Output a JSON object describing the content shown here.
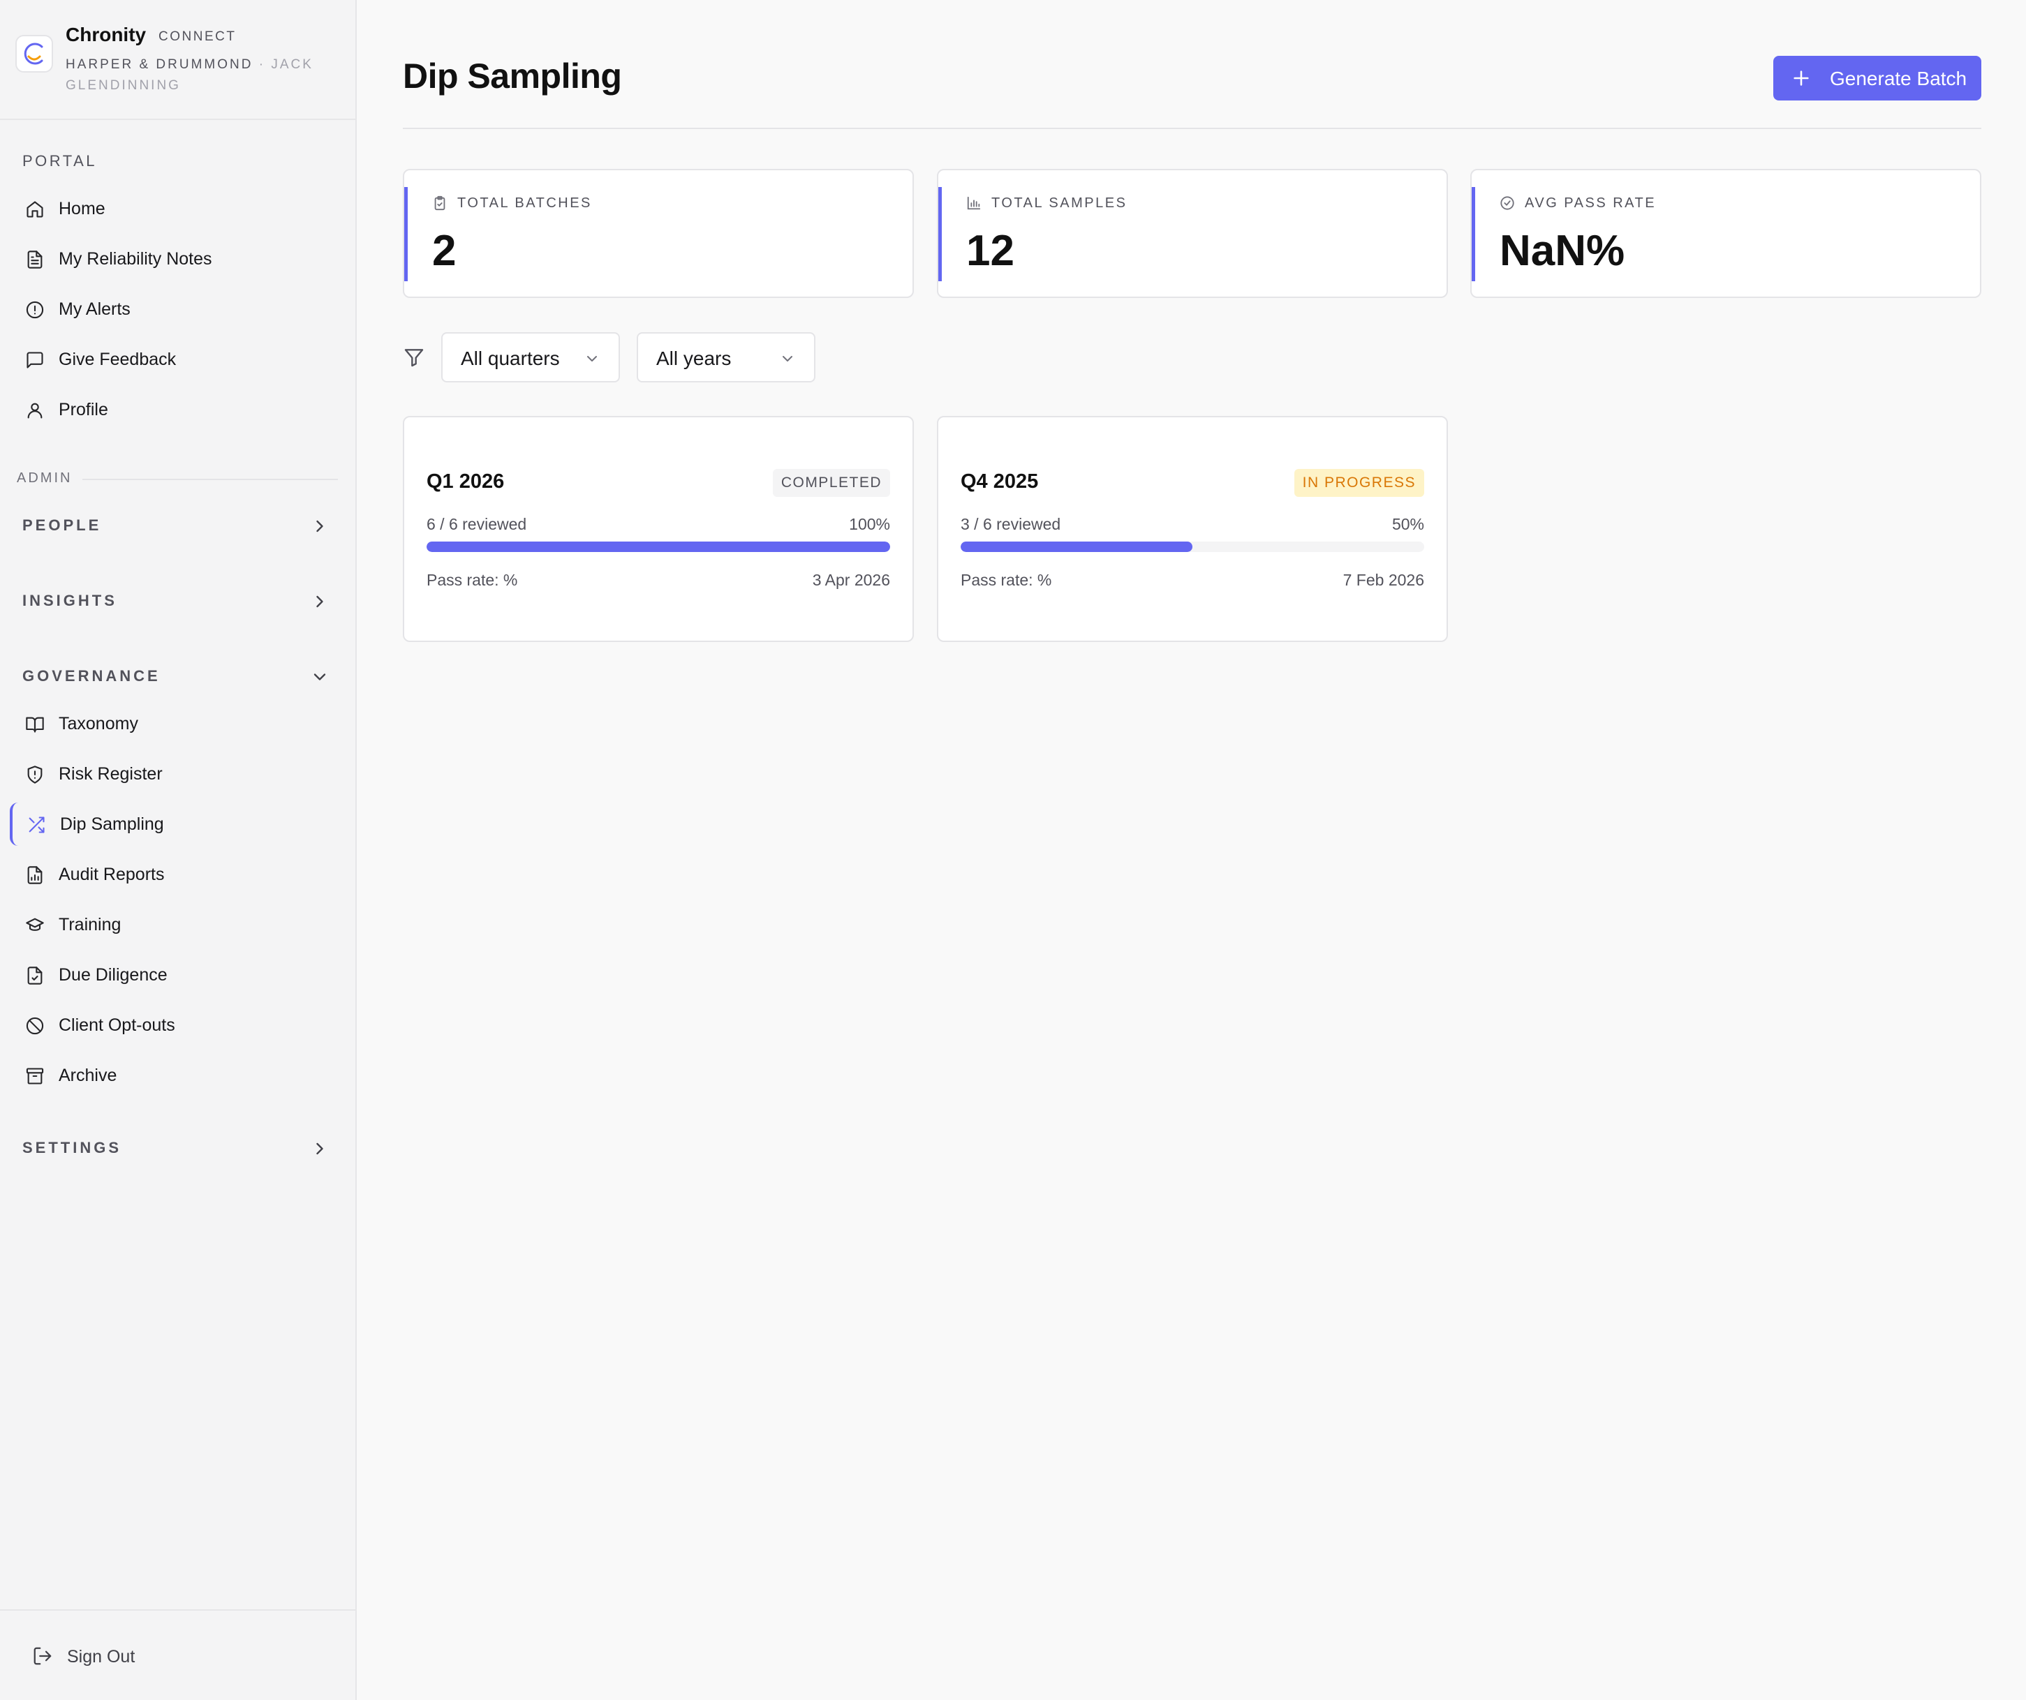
{
  "brand": {
    "name": "Chronity",
    "tag": "CONNECT",
    "org": "HARPER & DRUMMOND",
    "user": "· JACK GLENDINNING"
  },
  "sidebar": {
    "portal_label": "PORTAL",
    "portal_items": [
      {
        "label": "Home",
        "icon": "home-icon"
      },
      {
        "label": "My Reliability Notes",
        "icon": "document-icon"
      },
      {
        "label": "My Alerts",
        "icon": "alert-circle-icon"
      },
      {
        "label": "Give Feedback",
        "icon": "message-square-icon"
      },
      {
        "label": "Profile",
        "icon": "user-icon"
      }
    ],
    "admin_label": "ADMIN",
    "groups": {
      "people": "PEOPLE",
      "insights": "INSIGHTS",
      "governance": "GOVERNANCE",
      "settings": "SETTINGS"
    },
    "governance_items": [
      {
        "label": "Taxonomy",
        "icon": "book-open-icon"
      },
      {
        "label": "Risk Register",
        "icon": "shield-alert-icon"
      },
      {
        "label": "Dip Sampling",
        "icon": "shuffle-icon",
        "active": true
      },
      {
        "label": "Audit Reports",
        "icon": "file-chart-icon"
      },
      {
        "label": "Training",
        "icon": "graduation-cap-icon"
      },
      {
        "label": "Due Diligence",
        "icon": "file-check-icon"
      },
      {
        "label": "Client Opt-outs",
        "icon": "ban-icon"
      },
      {
        "label": "Archive",
        "icon": "archive-icon"
      }
    ],
    "sign_out": "Sign Out"
  },
  "header": {
    "title": "Dip Sampling",
    "generate_label": "Generate Batch"
  },
  "stats": [
    {
      "label": "TOTAL BATCHES",
      "value": "2",
      "icon": "clipboard-icon"
    },
    {
      "label": "TOTAL SAMPLES",
      "value": "12",
      "icon": "bar-chart-icon"
    },
    {
      "label": "AVG PASS RATE",
      "value": "NaN%",
      "icon": "check-circle-icon"
    }
  ],
  "filters": {
    "quarter": "All quarters",
    "year": "All years"
  },
  "batches": [
    {
      "quarter": "Q1 2026",
      "status": "COMPLETED",
      "reviewed": "6 / 6 reviewed",
      "percent_label": "100%",
      "progress": 1.0,
      "pass_rate": "Pass rate: %",
      "date": "3 Apr 2026"
    },
    {
      "quarter": "Q4 2025",
      "status": "IN PROGRESS",
      "reviewed": "3 / 6 reviewed",
      "percent_label": "50%",
      "progress": 0.5,
      "pass_rate": "Pass rate: %",
      "date": "7 Feb 2026"
    }
  ],
  "colors": {
    "accent": "#6366f1",
    "progress_badge_bg": "#fef3c7",
    "progress_badge_text": "#d97706"
  }
}
